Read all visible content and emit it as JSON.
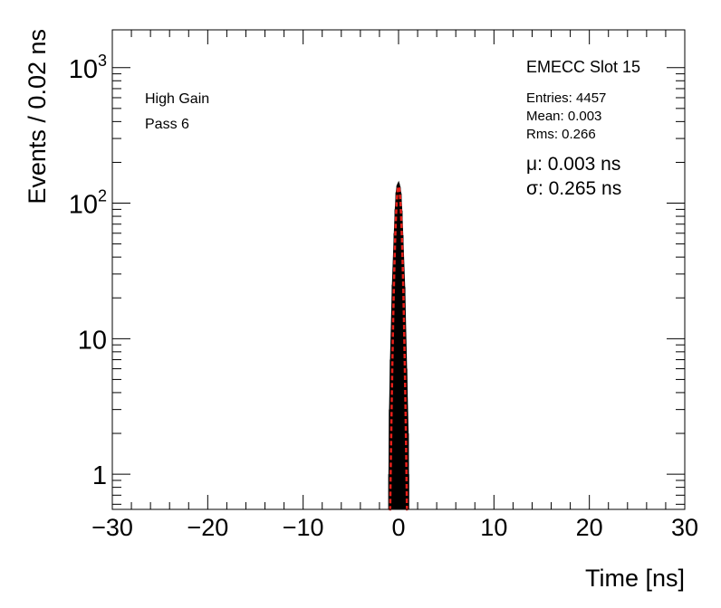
{
  "chart_data": {
    "type": "histogram",
    "title": "",
    "xlabel": "Time [ns]",
    "ylabel": "Events / 0.02 ns",
    "xlim": [
      -30,
      30
    ],
    "ylim": [
      0.55,
      1900
    ],
    "yscale": "log",
    "grid": false,
    "x_ticks": [
      -30,
      -20,
      -10,
      0,
      10,
      20,
      30
    ],
    "x_tick_labels": [
      "−30",
      "−20",
      "−10",
      "0",
      "10",
      "20",
      "30"
    ],
    "y_ticks": [
      1,
      10,
      100,
      1000
    ],
    "y_tick_labels": [
      {
        "base": "1",
        "exp": ""
      },
      {
        "base": "10",
        "exp": ""
      },
      {
        "base": "10",
        "exp": "2"
      },
      {
        "base": "10",
        "exp": "3"
      }
    ],
    "annotations": {
      "left": [
        "High Gain",
        "Pass 6"
      ],
      "panel_title": "EMECC Slot 15",
      "stats": [
        "Entries: 4457",
        "Mean: 0.003",
        "Rms: 0.266"
      ],
      "fit": [
        "μ: 0.003 ns",
        "σ: 0.265 ns"
      ]
    },
    "series": [
      {
        "kind": "histogram",
        "color": "#000000",
        "bin_width": 0.02,
        "x": [
          -0.96,
          -0.9,
          -0.8,
          -0.6,
          -0.4,
          -0.3,
          -0.2,
          -0.1,
          0.0,
          0.1,
          0.2,
          0.3,
          0.4,
          0.6,
          0.8,
          0.96,
          1.0
        ],
        "y": [
          1,
          3,
          7,
          25,
          60,
          90,
          120,
          135,
          140,
          132,
          118,
          88,
          58,
          24,
          6,
          2,
          1
        ]
      },
      {
        "kind": "gaussian-fit",
        "color": "#e8201a",
        "amplitude": 133,
        "mean": 0.003,
        "sigma": 0.265,
        "x_range": [
          -1.0,
          1.0
        ]
      }
    ]
  }
}
